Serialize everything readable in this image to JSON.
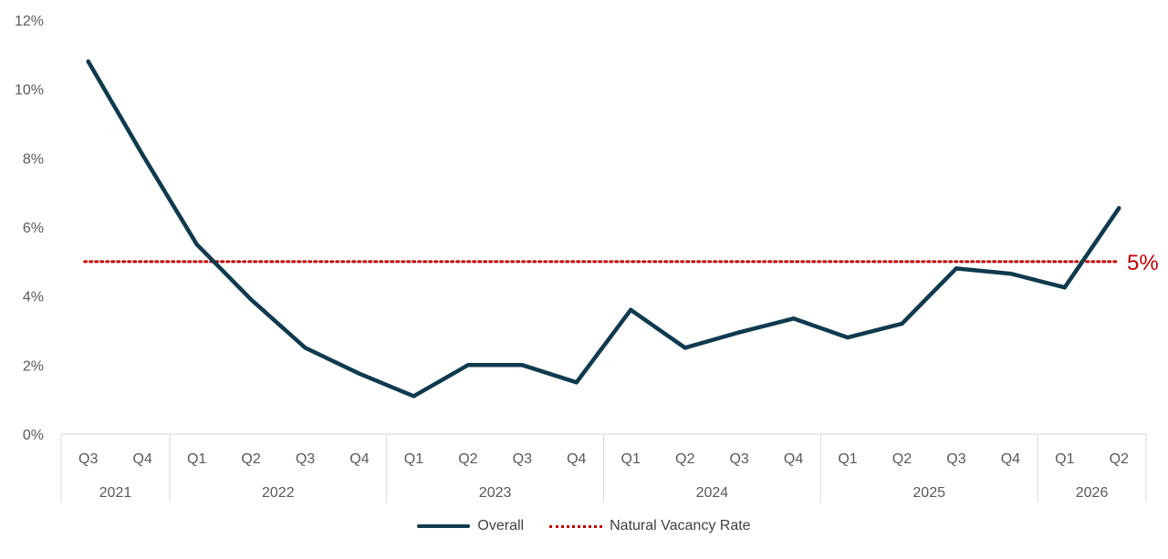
{
  "chart_data": {
    "type": "line",
    "ylim": [
      0,
      12
    ],
    "y_ticks": [
      "0%",
      "2%",
      "4%",
      "6%",
      "8%",
      "10%",
      "12%"
    ],
    "y_tick_values": [
      0,
      2,
      4,
      6,
      8,
      10,
      12
    ],
    "categories": [
      "Q3",
      "Q4",
      "Q1",
      "Q2",
      "Q3",
      "Q4",
      "Q1",
      "Q2",
      "Q3",
      "Q4",
      "Q1",
      "Q2",
      "Q3",
      "Q4",
      "Q1",
      "Q2",
      "Q3",
      "Q4",
      "Q1",
      "Q2"
    ],
    "years": [
      {
        "label": "2021",
        "count": 2
      },
      {
        "label": "2022",
        "count": 4
      },
      {
        "label": "2023",
        "count": 4
      },
      {
        "label": "2024",
        "count": 4
      },
      {
        "label": "2025",
        "count": 4
      },
      {
        "label": "2026",
        "count": 2
      }
    ],
    "series": [
      {
        "name": "Overall",
        "color": "#0f3a4f",
        "values": [
          10.8,
          8.1,
          5.5,
          3.9,
          2.5,
          1.75,
          1.1,
          2.0,
          2.0,
          1.5,
          3.6,
          2.5,
          2.95,
          3.35,
          2.8,
          3.2,
          4.8,
          4.65,
          4.25,
          6.55
        ]
      }
    ],
    "reference_line": {
      "name": "Natural Vacancy Rate",
      "value": 5,
      "label": "5%",
      "color": "#c00000"
    },
    "legend_position": "bottom",
    "grid": false
  }
}
